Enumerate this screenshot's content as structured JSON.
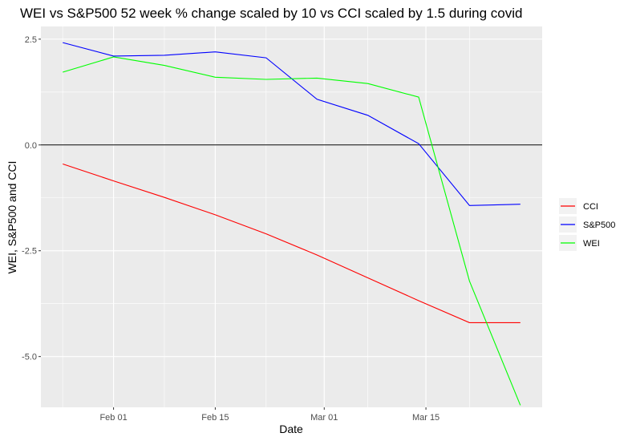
{
  "chart_data": {
    "type": "line",
    "title": "WEI vs S&P500 52 week % change scaled by 10 vs CCI scaled by 1.5 during covid",
    "xlabel": "Date",
    "ylabel": "WEI, S&P500 and CCI",
    "x_ticks": [
      "Feb 01",
      "Feb 15",
      "Mar 01",
      "Mar 15"
    ],
    "x_tick_dates": [
      "2020-02-01",
      "2020-02-15",
      "2020-03-01",
      "2020-03-15"
    ],
    "x": [
      "2020-01-25",
      "2020-02-01",
      "2020-02-08",
      "2020-02-15",
      "2020-02-22",
      "2020-02-29",
      "2020-03-07",
      "2020-03-14",
      "2020-03-21",
      "2020-03-28"
    ],
    "xlim": [
      "2020-01-22",
      "2020-03-31"
    ],
    "y_ticks": [
      "-5.0",
      "-2.5",
      "0.0",
      "2.5"
    ],
    "ylim": [
      -6.2,
      2.8
    ],
    "hline": 0,
    "grid": true,
    "legend_position": "right",
    "series": [
      {
        "name": "CCI",
        "color": "#ff0000",
        "values": [
          -0.45,
          -0.85,
          -1.24,
          -1.65,
          -2.1,
          -2.6,
          -3.14,
          -3.68,
          -4.2,
          -4.2
        ]
      },
      {
        "name": "S&P500",
        "color": "#0000ff",
        "values": [
          2.42,
          2.1,
          2.12,
          2.2,
          2.06,
          1.08,
          0.7,
          0.03,
          -1.43,
          -1.4
        ]
      },
      {
        "name": "WEI",
        "color": "#00ff00",
        "values": [
          1.72,
          2.08,
          1.88,
          1.6,
          1.55,
          1.58,
          1.45,
          1.13,
          -3.22,
          -6.15
        ]
      }
    ]
  }
}
